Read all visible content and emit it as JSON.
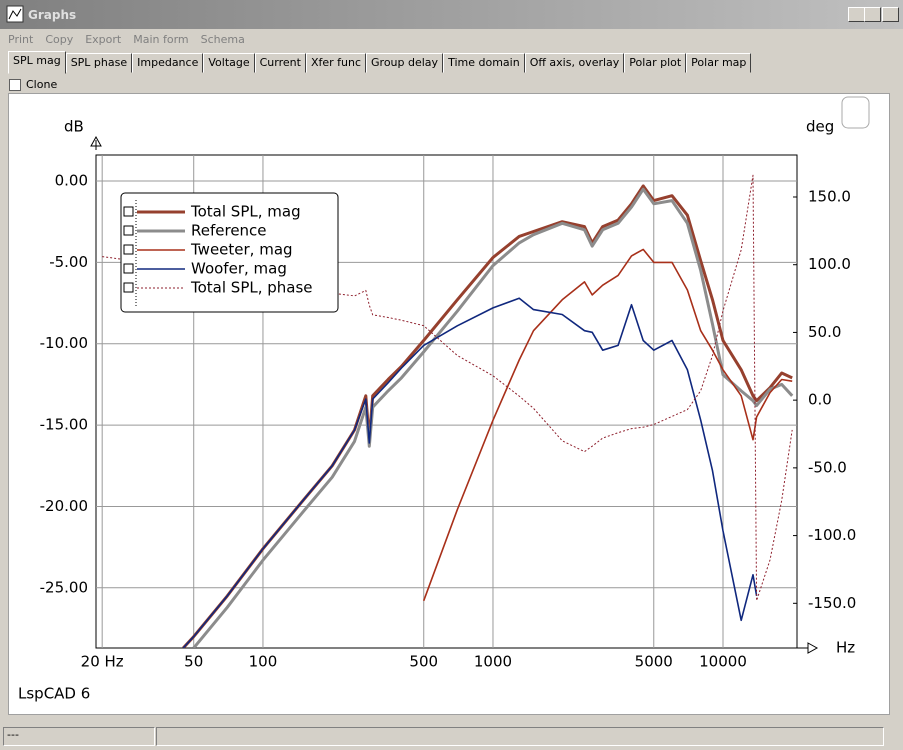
{
  "window": {
    "title": "Graphs",
    "menu": [
      "Print",
      "Copy",
      "Export",
      "Main form",
      "Schema"
    ],
    "tabs": [
      "SPL mag",
      "SPL phase",
      "Impedance",
      "Voltage",
      "Current",
      "Xfer func",
      "Group delay",
      "Time domain",
      "Off axis, overlay",
      "Polar plot",
      "Polar map"
    ],
    "checkbox": "Clone",
    "footer": "LspCAD 6",
    "status": "---"
  },
  "chart_data": {
    "type": "line",
    "ylabel": "dB",
    "y2label": "deg",
    "xlabel": "Hz",
    "xscale": "log",
    "grid": true,
    "legend": "top-left",
    "x": [
      20,
      45,
      50,
      70,
      100,
      150,
      200,
      250,
      280,
      290,
      300,
      350,
      400,
      500,
      700,
      1000,
      1300,
      1500,
      2000,
      2500,
      2700,
      3000,
      3500,
      4000,
      4500,
      5000,
      6000,
      7000,
      8000,
      9000,
      10000,
      12000,
      13500,
      14000,
      16000,
      18000,
      20000
    ],
    "xlim": [
      18.8,
      20975
    ],
    "xticks": [
      {
        "value": 20,
        "label": "20 Hz"
      },
      50,
      100,
      500,
      1000,
      5000,
      10000
    ],
    "ylim": [
      -28.7,
      1.6
    ],
    "yticks": [
      {
        "value": 0,
        "label": "0.00"
      },
      {
        "value": -5,
        "label": "-5.00"
      },
      {
        "value": -10,
        "label": "-10.00"
      },
      {
        "value": -15,
        "label": "-15.00"
      },
      {
        "value": -20,
        "label": "-20.00"
      },
      {
        "value": -25,
        "label": "-25.00"
      }
    ],
    "y2lim": [
      -183,
      181
    ],
    "y2ticks": [
      {
        "value": 150,
        "label": "150.0"
      },
      {
        "value": 100,
        "label": "100.0"
      },
      {
        "value": 50,
        "label": "50.0"
      },
      {
        "value": 0,
        "label": "0.0"
      },
      {
        "value": -50,
        "label": "-50.0"
      },
      {
        "value": -100,
        "label": "-100.0"
      },
      {
        "value": -150,
        "label": "-150.0"
      }
    ],
    "series": [
      {
        "name": "Total SPL, mag",
        "color": "#96402e",
        "width": 3,
        "values": [
          null,
          -28.7,
          -28.0,
          -25.5,
          -22.6,
          -19.6,
          -17.5,
          -15.3,
          -13.2,
          -15.9,
          -13.2,
          -12.2,
          -11.4,
          -9.8,
          -7.3,
          -4.7,
          -3.4,
          -3.1,
          -2.5,
          -2.8,
          -3.8,
          -2.8,
          -2.4,
          -1.4,
          -0.3,
          -1.2,
          -0.9,
          -2.1,
          -4.9,
          -7.3,
          -9.8,
          -11.6,
          -13.2,
          -13.5,
          -12.7,
          -11.8,
          -12.1
        ]
      },
      {
        "name": "Reference",
        "color": "#8c8c8c",
        "width": 3,
        "values": [
          null,
          null,
          -28.7,
          -26.2,
          -23.3,
          -20.3,
          -18.2,
          -16.0,
          -13.9,
          -16.3,
          -13.9,
          -12.9,
          -12.1,
          -10.5,
          -8.0,
          -5.2,
          -3.8,
          -3.3,
          -2.6,
          -3.0,
          -4.0,
          -3.0,
          -2.6,
          -1.6,
          -0.5,
          -1.4,
          -1.2,
          -2.6,
          -5.5,
          -8.8,
          -11.9,
          -12.9,
          -13.5,
          -13.8,
          -12.8,
          -12.5,
          -13.2
        ]
      },
      {
        "name": "Tweeter, mag",
        "color": "#a8301a",
        "width": 1.6,
        "values": [
          null,
          null,
          null,
          null,
          null,
          null,
          null,
          null,
          null,
          null,
          null,
          null,
          null,
          -25.8,
          -20.2,
          -14.7,
          -11.0,
          -9.2,
          -7.3,
          -6.2,
          -7.0,
          -6.4,
          -5.8,
          -4.6,
          -4.2,
          -5.0,
          -5.0,
          -6.7,
          -9.2,
          -10.4,
          -11.6,
          -13.2,
          -15.9,
          -14.5,
          -13.0,
          -12.2,
          -12.3
        ]
      },
      {
        "name": "Woofer, mag",
        "color": "#10287e",
        "width": 1.6,
        "values": [
          null,
          -28.7,
          -28.0,
          -25.5,
          -22.6,
          -19.6,
          -17.5,
          -15.3,
          -13.4,
          -16.1,
          -13.4,
          -12.4,
          -11.5,
          -10.1,
          -8.9,
          -7.8,
          -7.2,
          -7.9,
          -8.2,
          -9.2,
          -9.3,
          -10.4,
          -10.1,
          -7.6,
          -9.8,
          -10.4,
          -9.8,
          -11.6,
          -14.7,
          -17.8,
          -21.5,
          -27.0,
          -24.2,
          -25.5,
          null,
          null,
          null
        ]
      },
      {
        "name": "Total SPL, phase",
        "color": "#8e1f2c",
        "width": 1,
        "dash": true,
        "axis": "y2",
        "values": [
          106,
          98,
          96,
          93,
          90,
          85,
          79,
          77,
          81,
          70,
          63,
          61,
          59,
          55,
          33,
          18,
          3,
          -6,
          -30,
          -38,
          -34,
          -28,
          -24,
          -21,
          -20,
          -18,
          -12,
          -7,
          7,
          33,
          66,
          111,
          166,
          -148,
          -118,
          -74,
          -22
        ]
      }
    ]
  }
}
